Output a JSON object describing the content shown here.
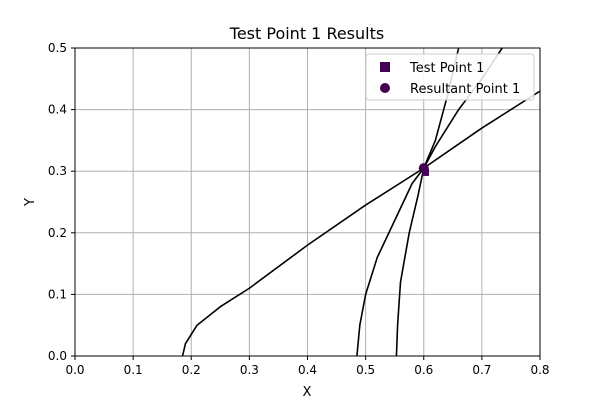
{
  "chart_data": {
    "type": "line",
    "title": "Test Point 1 Results",
    "xlabel": "X",
    "ylabel": "Y",
    "xlim": [
      0.0,
      0.8
    ],
    "ylim": [
      0.0,
      0.5
    ],
    "x_ticks": [
      "0.0",
      "0.1",
      "0.2",
      "0.3",
      "0.4",
      "0.5",
      "0.6",
      "0.7",
      "0.8"
    ],
    "y_ticks": [
      "0.0",
      "0.1",
      "0.2",
      "0.3",
      "0.4",
      "0.5"
    ],
    "grid": true,
    "legend_position": "top-right",
    "line_color": "#000000",
    "marker_color": "#440154",
    "curves": [
      {
        "x": [
          0.185,
          0.19,
          0.21,
          0.25,
          0.3,
          0.4,
          0.5,
          0.6,
          0.7,
          0.8
        ],
        "y": [
          0.0,
          0.02,
          0.05,
          0.08,
          0.11,
          0.18,
          0.245,
          0.305,
          0.37,
          0.43
        ]
      },
      {
        "x": [
          0.485,
          0.49,
          0.5,
          0.52,
          0.55,
          0.58,
          0.6,
          0.62,
          0.64,
          0.66
        ],
        "y": [
          0.0,
          0.05,
          0.1,
          0.16,
          0.22,
          0.28,
          0.305,
          0.35,
          0.42,
          0.5
        ]
      },
      {
        "x": [
          0.553,
          0.555,
          0.56,
          0.575,
          0.59,
          0.6,
          0.62,
          0.66,
          0.7,
          0.735
        ],
        "y": [
          0.0,
          0.05,
          0.12,
          0.2,
          0.26,
          0.305,
          0.34,
          0.4,
          0.45,
          0.5
        ]
      }
    ],
    "points": [
      {
        "name": "Test Point 1",
        "marker": "square",
        "x": 0.603,
        "y": 0.298
      },
      {
        "name": "Resultant Point 1",
        "marker": "circle",
        "x": 0.6,
        "y": 0.305
      }
    ]
  }
}
